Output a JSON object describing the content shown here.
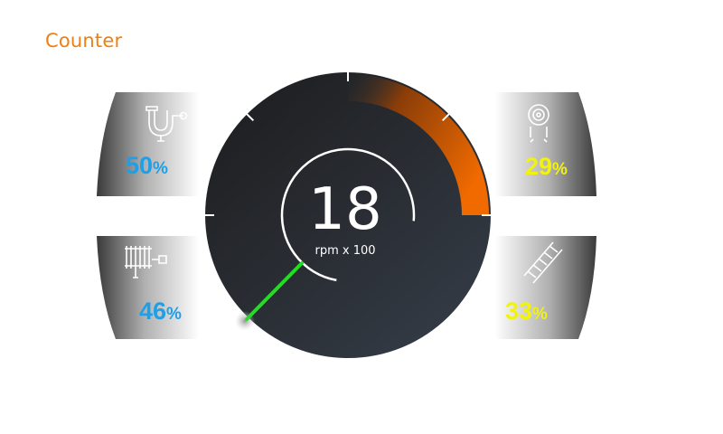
{
  "title": "Counter",
  "gauge": {
    "value": "18",
    "unit": "rpm x 100",
    "needle_fraction": 0.18,
    "redzone_start_fraction": 0.75,
    "colors": {
      "dial": "#2a2d31",
      "redzone": "#e86500",
      "needle": "#22dd22"
    }
  },
  "panels": [
    {
      "id": "top-left",
      "icon": "plumbing-pipe-icon",
      "value": "50",
      "unit": "%",
      "color": "#1e9fe8"
    },
    {
      "id": "bottom-left",
      "icon": "heater-hose-icon",
      "value": "46",
      "unit": "%",
      "color": "#1e9fe8"
    },
    {
      "id": "top-right",
      "icon": "hose-reel-icon",
      "value": "29",
      "unit": "%",
      "color": "#f2f20f"
    },
    {
      "id": "bottom-right",
      "icon": "ladder-icon",
      "value": "33",
      "unit": "%",
      "color": "#f2f20f"
    }
  ]
}
